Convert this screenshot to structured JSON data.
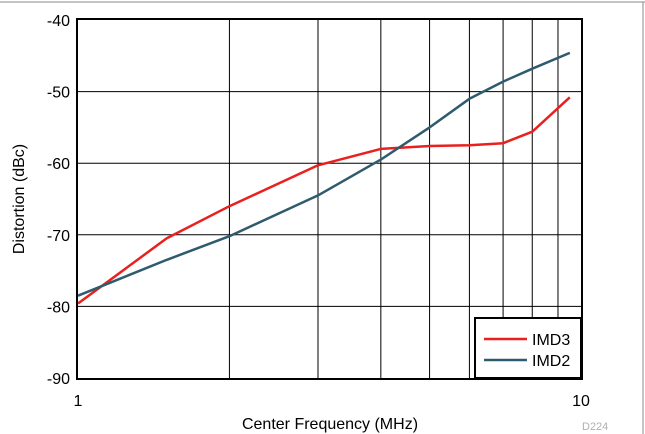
{
  "chart_data": {
    "type": "line",
    "xlabel": "Center Frequency (MHz)",
    "ylabel": "Distortion (dBc)",
    "x_scale": "log",
    "xlim": [
      1,
      10
    ],
    "ylim": [
      -90,
      -40
    ],
    "x_ticks": [
      1,
      10
    ],
    "x_tick_labels": [
      "1",
      "10"
    ],
    "y_ticks": [
      -90,
      -80,
      -70,
      -60,
      -50,
      -40
    ],
    "y_tick_labels": [
      "-90",
      "-80",
      "-70",
      "-60",
      "-50",
      "-40"
    ],
    "grid": true,
    "legend_position": "bottom-right",
    "series": [
      {
        "name": "IMD3",
        "color": "#e8201e",
        "x": [
          1,
          1.5,
          2,
          3,
          4,
          5,
          6,
          7,
          8,
          9.5
        ],
        "y": [
          -79.6,
          -70.5,
          -66.0,
          -60.3,
          -58.0,
          -57.6,
          -57.5,
          -57.2,
          -55.6,
          -50.8
        ]
      },
      {
        "name": "IMD2",
        "color": "#2f5b6e",
        "x": [
          1,
          1.5,
          2,
          3,
          4,
          5,
          6,
          7,
          8,
          9.5
        ],
        "y": [
          -78.5,
          -73.5,
          -70.2,
          -64.5,
          -59.5,
          -55.0,
          -51.0,
          -48.6,
          -46.8,
          -44.6
        ]
      }
    ],
    "figure_code": "D224"
  }
}
